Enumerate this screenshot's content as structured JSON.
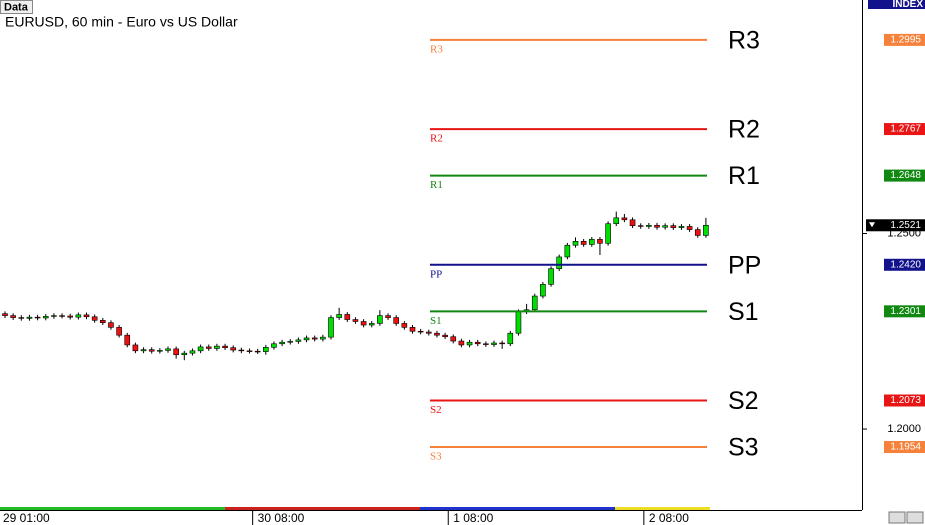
{
  "chart_data": {
    "type": "candlestick",
    "tab": "Data",
    "title": "EURUSD, 60 min - Euro vs US Dollar",
    "axis_badge": "INDEX",
    "open": [
      1.2295,
      1.229,
      1.2285,
      1.2283,
      1.2286,
      1.2284,
      1.2288,
      1.229,
      1.2289,
      1.2286,
      1.2292,
      1.2287,
      1.2278,
      1.2272,
      1.226,
      1.224,
      1.2215,
      1.22,
      1.2203,
      1.2199,
      1.2201,
      1.2205,
      1.219,
      1.2194,
      1.22,
      1.221,
      1.2206,
      1.2212,
      1.2208,
      1.2202,
      1.22,
      1.2199,
      1.2198,
      1.2209,
      1.2218,
      1.2222,
      1.2224,
      1.2228,
      1.2233,
      1.223,
      1.2235,
      1.2285,
      1.2293,
      1.228,
      1.2275,
      1.2266,
      1.227,
      1.229,
      1.2285,
      1.227,
      1.226,
      1.225,
      1.2248,
      1.2245,
      1.224,
      1.2236,
      1.2225,
      1.2215,
      1.2222,
      1.2218,
      1.2216,
      1.222,
      1.2218,
      1.2245,
      1.23,
      1.2305,
      1.234,
      1.237,
      1.241,
      1.244,
      1.247,
      1.248,
      1.2472,
      1.2485,
      1.2475,
      1.2525,
      1.254,
      1.2535,
      1.252,
      1.2518,
      1.2521,
      1.2516,
      1.252,
      1.2515,
      1.2518,
      1.251,
      1.2495
    ],
    "high": [
      1.2301,
      1.2296,
      1.2291,
      1.2292,
      1.2292,
      1.2294,
      1.2296,
      1.2296,
      1.2295,
      1.2298,
      1.2298,
      1.2293,
      1.2284,
      1.2278,
      1.2266,
      1.2246,
      1.2221,
      1.2209,
      1.2209,
      1.2207,
      1.2211,
      1.2211,
      1.22,
      1.2206,
      1.2216,
      1.2216,
      1.2218,
      1.2218,
      1.2214,
      1.2208,
      1.2206,
      1.2205,
      1.2215,
      1.2224,
      1.2228,
      1.223,
      1.2234,
      1.2239,
      1.2239,
      1.2241,
      1.2291,
      1.231,
      1.2299,
      1.2286,
      1.2281,
      1.2276,
      1.2304,
      1.2296,
      1.2291,
      1.2276,
      1.2266,
      1.2256,
      1.2254,
      1.2251,
      1.2246,
      1.2242,
      1.2231,
      1.2228,
      1.2228,
      1.2224,
      1.2226,
      1.2226,
      1.2251,
      1.2306,
      1.232,
      1.2346,
      1.2376,
      1.2416,
      1.2446,
      1.2476,
      1.249,
      1.2486,
      1.2491,
      1.2491,
      1.2531,
      1.2556,
      1.255,
      1.2541,
      1.2526,
      1.2527,
      1.2527,
      1.2526,
      1.2526,
      1.2524,
      1.2524,
      1.2516,
      1.254
    ],
    "low": [
      1.2284,
      1.2279,
      1.2277,
      1.2277,
      1.2278,
      1.2278,
      1.2282,
      1.2283,
      1.228,
      1.228,
      1.2281,
      1.2272,
      1.2266,
      1.2254,
      1.2234,
      1.2209,
      1.2194,
      1.2194,
      1.2193,
      1.2193,
      1.2195,
      1.218,
      1.2176,
      1.2188,
      1.2194,
      1.22,
      1.22,
      1.2202,
      1.2196,
      1.2194,
      1.2193,
      1.2192,
      1.219,
      1.2203,
      1.2212,
      1.2216,
      1.2218,
      1.2222,
      1.2224,
      1.2224,
      1.2229,
      1.2279,
      1.2274,
      1.2269,
      1.226,
      1.226,
      1.2264,
      1.2279,
      1.2264,
      1.2254,
      1.2244,
      1.2242,
      1.2239,
      1.2234,
      1.223,
      1.2219,
      1.2209,
      1.2209,
      1.2212,
      1.221,
      1.221,
      1.2205,
      1.2212,
      1.2239,
      1.2294,
      1.2299,
      1.2334,
      1.2364,
      1.2404,
      1.2434,
      1.2464,
      1.2466,
      1.2466,
      1.2445,
      1.2469,
      1.2519,
      1.2529,
      1.2514,
      1.2512,
      1.2512,
      1.251,
      1.251,
      1.2509,
      1.2509,
      1.2504,
      1.2489,
      1.2489
    ],
    "close": [
      1.229,
      1.2285,
      1.2283,
      1.2286,
      1.2284,
      1.2288,
      1.229,
      1.2289,
      1.2286,
      1.2292,
      1.2287,
      1.2278,
      1.2272,
      1.226,
      1.224,
      1.2215,
      1.22,
      1.2203,
      1.2199,
      1.2201,
      1.2205,
      1.219,
      1.2194,
      1.22,
      1.221,
      1.2206,
      1.2212,
      1.2208,
      1.2202,
      1.22,
      1.2199,
      1.2198,
      1.2209,
      1.2218,
      1.2222,
      1.2224,
      1.2228,
      1.2233,
      1.223,
      1.2235,
      1.2285,
      1.2293,
      1.228,
      1.2275,
      1.2266,
      1.227,
      1.229,
      1.2285,
      1.227,
      1.226,
      1.225,
      1.2248,
      1.2245,
      1.224,
      1.2236,
      1.2225,
      1.2215,
      1.2222,
      1.2218,
      1.2216,
      1.222,
      1.2218,
      1.2245,
      1.23,
      1.2305,
      1.234,
      1.237,
      1.241,
      1.244,
      1.247,
      1.248,
      1.2472,
      1.2485,
      1.2475,
      1.2525,
      1.254,
      1.2535,
      1.252,
      1.2518,
      1.2521,
      1.2516,
      1.252,
      1.2515,
      1.2518,
      1.251,
      1.2495,
      1.2521
    ],
    "up_color": "#00dd00",
    "down_color": "#ee1111",
    "xticks": [
      {
        "value": 0,
        "label": "29 01:00"
      },
      {
        "value": 31,
        "label": "30 08:00"
      },
      {
        "value": 55,
        "label": "1 08:00"
      },
      {
        "value": 79,
        "label": "2 08:00"
      }
    ],
    "ylim": [
      1.1793,
      1.3097
    ],
    "yticks": [
      {
        "value": 1.25,
        "label": "1.2500"
      },
      {
        "value": 1.2,
        "label": "1.2000"
      }
    ],
    "last_price": 1.2521,
    "levels": [
      {
        "name": "R3",
        "value": 1.2995,
        "label": "1.2995",
        "color": "#f5813a"
      },
      {
        "name": "R2",
        "value": 1.2767,
        "label": "1.2767",
        "color": "#e81515"
      },
      {
        "name": "R1",
        "value": 1.2648,
        "label": "1.2648",
        "color": "#118811"
      },
      {
        "name": "PP",
        "value": 1.242,
        "label": "1.2420",
        "color": "#12128c"
      },
      {
        "name": "S1",
        "value": 1.2301,
        "label": "1.2301",
        "color": "#118811"
      },
      {
        "name": "S2",
        "value": 1.2073,
        "label": "1.2073",
        "color": "#e81515"
      },
      {
        "name": "S3",
        "value": 1.1954,
        "label": "1.1954",
        "color": "#f5813a"
      }
    ]
  }
}
